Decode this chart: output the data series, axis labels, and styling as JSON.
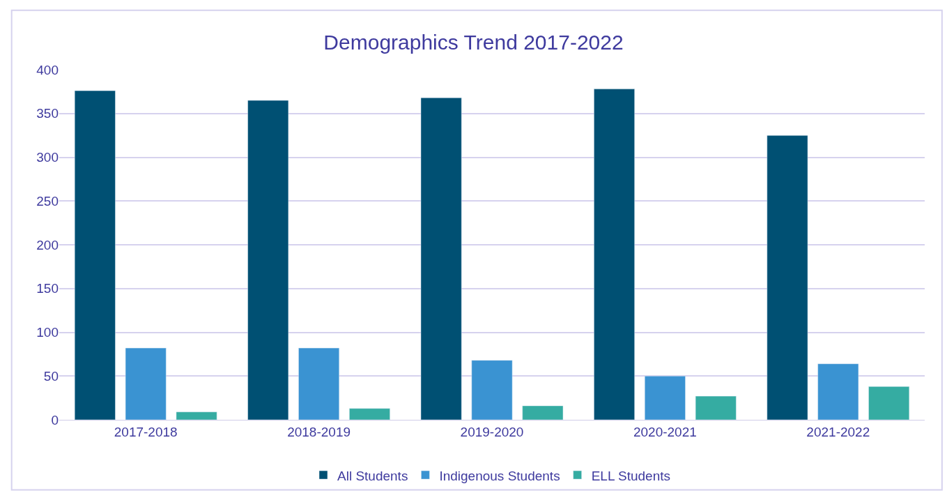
{
  "chart_data": {
    "type": "bar",
    "title": "Demographics Trend 2017-2022",
    "categories": [
      "2017-2018",
      "2018-2019",
      "2019-2020",
      "2020-2021",
      "2021-2022"
    ],
    "series": [
      {
        "name": "All Students",
        "color": "#005073",
        "values": [
          376,
          365,
          368,
          378,
          325
        ]
      },
      {
        "name": "Indigenous Students",
        "color": "#3a93d2",
        "values": [
          82,
          82,
          68,
          50,
          64
        ]
      },
      {
        "name": "ELL Students",
        "color": "#35aca2",
        "values": [
          9,
          13,
          16,
          27,
          38
        ]
      }
    ],
    "ylim": [
      0,
      400
    ],
    "yticks": [
      0,
      50,
      100,
      150,
      200,
      250,
      300,
      350,
      400
    ],
    "grid": "y",
    "legend": "bottom"
  }
}
